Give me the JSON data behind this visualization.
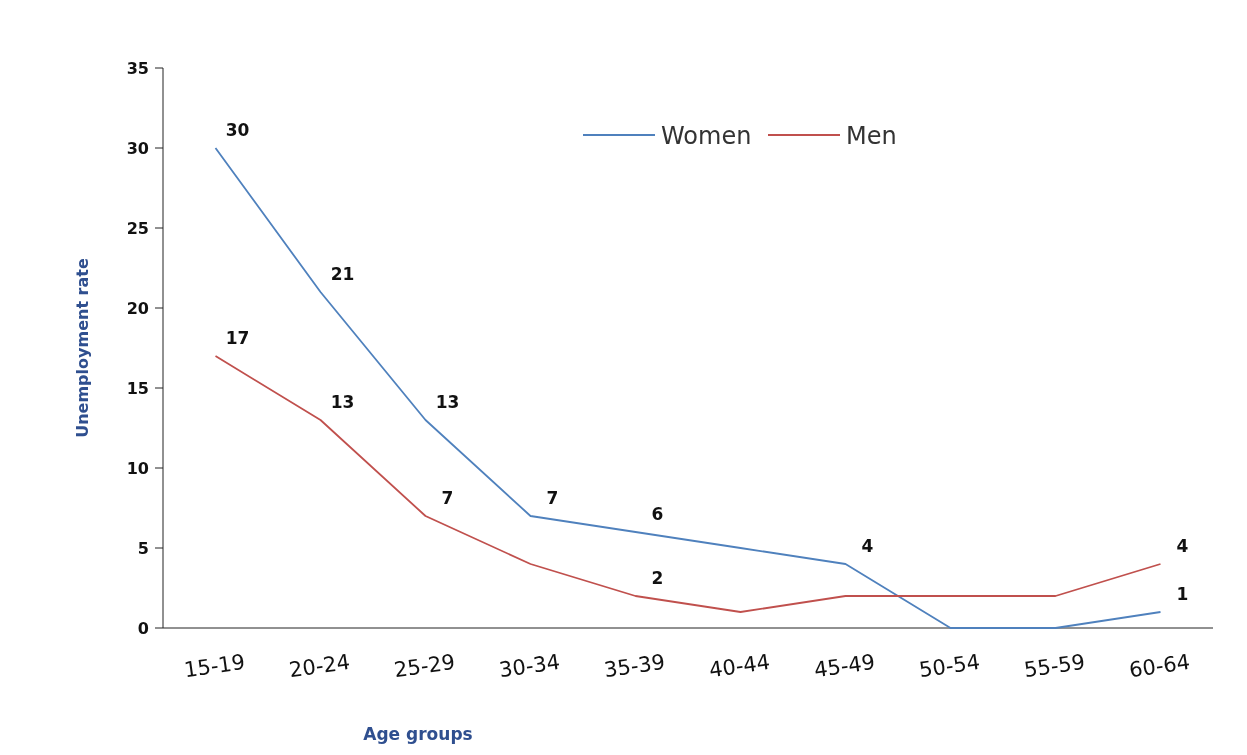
{
  "chart_data": {
    "type": "line",
    "xlabel": "Age groups",
    "ylabel": "Unemployment rate",
    "categories": [
      "15-19",
      "20-24",
      "25-29",
      "30-34",
      "35-39",
      "40-44",
      "45-49",
      "50-54",
      "55-59",
      "60-64"
    ],
    "series": [
      {
        "name": "Women",
        "color": "#4f81bd",
        "values": [
          30,
          21,
          13,
          7,
          6,
          5,
          4,
          0,
          0,
          1
        ],
        "value_labels": [
          "30",
          "21",
          "13",
          "7",
          "6",
          null,
          "4",
          null,
          null,
          "1"
        ]
      },
      {
        "name": "Men",
        "color": "#c0504d",
        "values": [
          17,
          13,
          7,
          4,
          2,
          1,
          2,
          2,
          2,
          4
        ],
        "value_labels": [
          "17",
          "13",
          "7",
          null,
          "2",
          null,
          null,
          null,
          null,
          "4"
        ]
      }
    ],
    "ylim": [
      0,
      35
    ],
    "yticks": [
      0,
      5,
      10,
      15,
      20,
      25,
      30,
      35
    ],
    "grid": false,
    "legend": "top",
    "marker": "none",
    "line_style": "solid"
  }
}
